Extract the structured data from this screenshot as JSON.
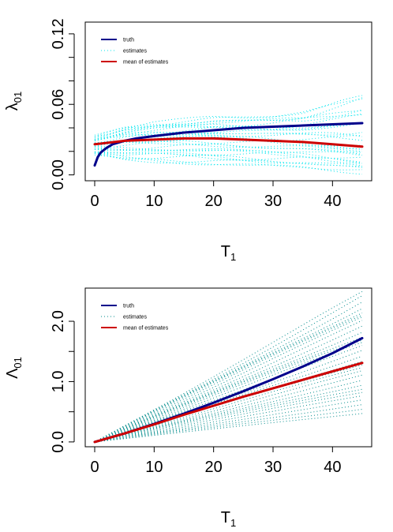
{
  "chart_data": [
    {
      "type": "line",
      "ylabel_base": "λ",
      "ylabel_sub": "01",
      "xlabel_base": "T",
      "xlabel_sub": "1",
      "xlim": [
        0,
        45
      ],
      "ylim": [
        -0.005,
        0.13
      ],
      "xticks": [
        "0",
        "10",
        "20",
        "30",
        "40"
      ],
      "xtick_values": [
        0,
        10,
        20,
        30,
        40
      ],
      "yticks": [
        "0.00",
        "0.06",
        "0.12"
      ],
      "ytick_values": [
        0.0,
        0.06,
        0.12
      ],
      "minor_yticks": [
        0.02,
        0.04,
        0.08,
        0.1
      ],
      "legend": {
        "position": "top-left",
        "entries": [
          {
            "label": "truth",
            "color": "#00008B",
            "style": "solid"
          },
          {
            "label": "estimates",
            "color": "#00E5EE",
            "style": "dotted"
          },
          {
            "label": "mean of estimates",
            "color": "#CD0000",
            "style": "solid"
          }
        ]
      },
      "series": [
        {
          "name": "truth",
          "color": "#00008B",
          "x": [
            0,
            0.5,
            1,
            2,
            3,
            5,
            7,
            10,
            15,
            20,
            25,
            30,
            35,
            40,
            45
          ],
          "y": [
            0.008,
            0.015,
            0.019,
            0.023,
            0.026,
            0.029,
            0.031,
            0.033,
            0.036,
            0.038,
            0.04,
            0.041,
            0.042,
            0.043,
            0.044
          ]
        },
        {
          "name": "mean of estimates",
          "color": "#CD0000",
          "x": [
            0,
            5,
            10,
            15,
            20,
            25,
            30,
            35,
            40,
            45
          ],
          "y": [
            0.026,
            0.029,
            0.03,
            0.031,
            0.031,
            0.03,
            0.029,
            0.028,
            0.026,
            0.024
          ]
        }
      ],
      "estimates": {
        "color": "#00E5EE",
        "count": 30,
        "center_x": [
          0,
          5,
          10,
          15,
          20,
          25,
          30,
          35,
          40,
          45
        ],
        "center_y": [
          0.026,
          0.029,
          0.03,
          0.031,
          0.031,
          0.03,
          0.029,
          0.028,
          0.026,
          0.024
        ],
        "spread_low_y": [
          0.017,
          0.012,
          0.011,
          0.01,
          0.009,
          0.008,
          0.007,
          0.006,
          0.004,
          0.002
        ],
        "spread_high_y": [
          0.035,
          0.045,
          0.05,
          0.052,
          0.055,
          0.056,
          0.058,
          0.062,
          0.072,
          0.082
        ]
      }
    },
    {
      "type": "line",
      "ylabel_base": "Λ",
      "ylabel_sub": "01",
      "xlabel_base": "T",
      "xlabel_sub": "1",
      "xlim": [
        0,
        45
      ],
      "ylim": [
        -0.08,
        2.55
      ],
      "xticks": [
        "0",
        "10",
        "20",
        "30",
        "40"
      ],
      "xtick_values": [
        0,
        10,
        20,
        30,
        40
      ],
      "yticks": [
        "0.0",
        "1.0",
        "2.0"
      ],
      "ytick_values": [
        0.0,
        1.0,
        2.0
      ],
      "minor_yticks": [
        0.5,
        1.5
      ],
      "legend": {
        "position": "top-left",
        "entries": [
          {
            "label": "truth",
            "color": "#00008B",
            "style": "solid"
          },
          {
            "label": "estimates",
            "color": "#008B8B",
            "style": "dotted"
          },
          {
            "label": "mean of estimates",
            "color": "#CD0000",
            "style": "solid"
          }
        ]
      },
      "series": [
        {
          "name": "truth",
          "color": "#00008B",
          "x": [
            0,
            5,
            10,
            15,
            20,
            25,
            30,
            35,
            40,
            45
          ],
          "y": [
            0.0,
            0.14,
            0.3,
            0.47,
            0.65,
            0.84,
            1.04,
            1.25,
            1.47,
            1.72
          ]
        },
        {
          "name": "mean of estimates",
          "color": "#CD0000",
          "x": [
            0,
            5,
            10,
            15,
            20,
            25,
            30,
            35,
            40,
            45
          ],
          "y": [
            0.0,
            0.14,
            0.29,
            0.45,
            0.6,
            0.75,
            0.89,
            1.03,
            1.17,
            1.31
          ]
        }
      ],
      "estimates": {
        "color": "#008B8B",
        "count": 30,
        "center_x": [
          0,
          45
        ],
        "low_y_end": 0.48,
        "high_y_end": 2.45,
        "mid_y_end": 1.31
      }
    }
  ]
}
